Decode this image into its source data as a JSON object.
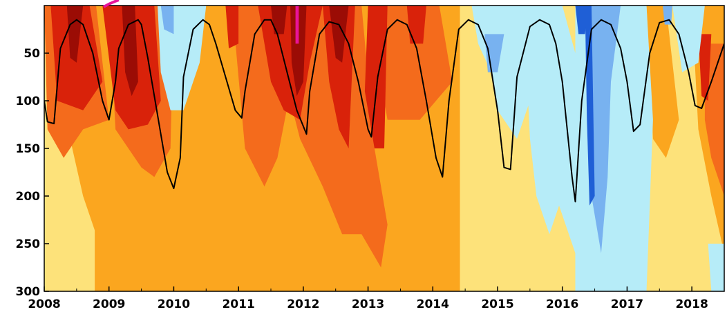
{
  "chart_data": {
    "type": "heatmap",
    "title": "",
    "xlabel": "",
    "ylabel": "",
    "x_range": [
      2008.0,
      2018.5
    ],
    "y_range": [
      0,
      300
    ],
    "y_inverted": true,
    "x_ticks": [
      "2008",
      "2009",
      "2010",
      "2011",
      "2012",
      "2013",
      "2014",
      "2015",
      "2016",
      "2017",
      "2018"
    ],
    "y_ticks": [
      "50",
      "100",
      "150",
      "200",
      "250",
      "300"
    ],
    "color_levels": [
      {
        "name": "dark-blue",
        "color": "#1f5fd6"
      },
      {
        "name": "mid-blue",
        "color": "#78b2f0"
      },
      {
        "name": "light-blue",
        "color": "#b6ecf8"
      },
      {
        "name": "pale-yellow",
        "color": "#fde27a"
      },
      {
        "name": "orange",
        "color": "#fba61f"
      },
      {
        "name": "dark-orange",
        "color": "#f46b1c"
      },
      {
        "name": "red",
        "color": "#d9220a"
      },
      {
        "name": "dark-red",
        "color": "#9b0c05"
      },
      {
        "name": "magenta",
        "color": "#e9149a"
      }
    ],
    "background_bands": [
      {
        "x0": 2008.0,
        "x1": 2008.78,
        "level": "pale-yellow"
      },
      {
        "x0": 2008.78,
        "x1": 2014.42,
        "level": "orange"
      },
      {
        "x0": 2014.42,
        "x1": 2016.2,
        "level": "pale-yellow"
      },
      {
        "x0": 2016.2,
        "x1": 2017.3,
        "level": "light-blue"
      },
      {
        "x0": 2017.3,
        "x1": 2018.5,
        "level": "pale-yellow"
      }
    ],
    "contour_line": {
      "color": "#000000",
      "x": [
        2008.0,
        2008.05,
        2008.15,
        2008.25,
        2008.4,
        2008.5,
        2008.6,
        2008.75,
        2008.9,
        2009.0,
        2009.1,
        2009.15,
        2009.3,
        2009.45,
        2009.5,
        2009.6,
        2009.75,
        2009.9,
        2010.0,
        2010.1,
        2010.15,
        2010.3,
        2010.45,
        2010.55,
        2010.65,
        2010.8,
        2010.95,
        2011.05,
        2011.1,
        2011.25,
        2011.4,
        2011.5,
        2011.6,
        2011.75,
        2011.9,
        2012.05,
        2012.1,
        2012.25,
        2012.4,
        2012.55,
        2012.7,
        2012.85,
        2013.0,
        2013.05,
        2013.15,
        2013.3,
        2013.45,
        2013.6,
        2013.75,
        2013.9,
        2014.05,
        2014.15,
        2014.25,
        2014.4,
        2014.55,
        2014.7,
        2014.85,
        2015.0,
        2015.1,
        2015.2,
        2015.3,
        2015.5,
        2015.65,
        2015.8,
        2015.9,
        2016.0,
        2016.15,
        2016.2,
        2016.3,
        2016.45,
        2016.6,
        2016.75,
        2016.9,
        2017.0,
        2017.1,
        2017.2,
        2017.35,
        2017.5,
        2017.65,
        2017.8,
        2017.95,
        2018.05,
        2018.15,
        2018.3,
        2018.5
      ],
      "y": [
        100,
        122,
        124,
        45,
        20,
        15,
        20,
        50,
        100,
        120,
        80,
        45,
        20,
        15,
        20,
        55,
        115,
        175,
        192,
        160,
        75,
        25,
        15,
        20,
        40,
        75,
        110,
        118,
        90,
        30,
        15,
        15,
        30,
        70,
        110,
        135,
        90,
        30,
        17,
        20,
        40,
        80,
        130,
        138,
        75,
        25,
        15,
        20,
        45,
        100,
        160,
        180,
        100,
        25,
        15,
        20,
        45,
        110,
        170,
        172,
        75,
        22,
        15,
        20,
        40,
        80,
        180,
        206,
        100,
        25,
        15,
        20,
        45,
        80,
        132,
        125,
        50,
        18,
        15,
        30,
        70,
        105,
        108,
        80,
        40
      ]
    }
  }
}
